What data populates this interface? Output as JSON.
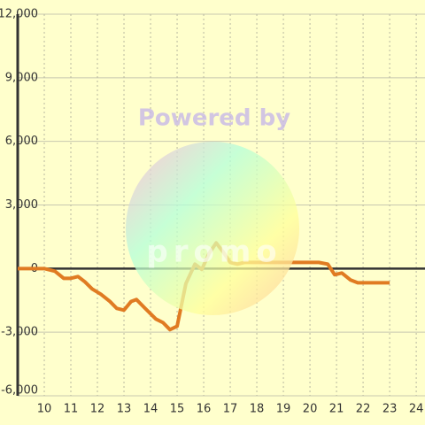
{
  "chart_data": {
    "type": "line",
    "watermark": [
      "Powered by",
      "promo"
    ],
    "x": [
      9,
      10,
      10.4,
      10.73,
      11,
      11.27,
      11.53,
      11.8,
      12.13,
      12.47,
      12.73,
      13,
      13.27,
      13.47,
      13.8,
      14.2,
      14.47,
      14.73,
      15,
      15.33,
      15.67,
      15.93,
      16.2,
      16.47,
      16.73,
      17,
      17.27,
      17.53,
      18,
      20.33,
      20.67,
      20.93,
      21.2,
      21.53,
      21.8,
      23
    ],
    "series": [
      {
        "color": "#e07b22",
        "values": [
          0,
          0,
          -125,
          -460,
          -460,
          -376,
          -627,
          -960,
          -1210,
          -1550,
          -1880,
          -1960,
          -1550,
          -1460,
          -1880,
          -2380,
          -2550,
          -2880,
          -2720,
          -710,
          210,
          -40,
          710,
          1210,
          790,
          290,
          210,
          290,
          290,
          290,
          210,
          -290,
          -210,
          -540,
          -670,
          -670
        ]
      }
    ],
    "xlim": [
      9,
      24.33
    ],
    "xticks": [
      10,
      11,
      12,
      13,
      14,
      15,
      16,
      17,
      18,
      19,
      20,
      21,
      22,
      23,
      24
    ],
    "ylim": [
      -6000,
      12000
    ],
    "yticks": [
      {
        "value": -6000,
        "label": "-6,000"
      },
      {
        "value": -3000,
        "label": "-3,000"
      },
      0,
      {
        "value": 3000,
        "label": "3,000"
      },
      {
        "value": 6000,
        "label": "6,000"
      },
      {
        "value": 9000,
        "label": "9,000"
      },
      {
        "value": 12000,
        "label": "12,000"
      }
    ],
    "grid": true
  }
}
